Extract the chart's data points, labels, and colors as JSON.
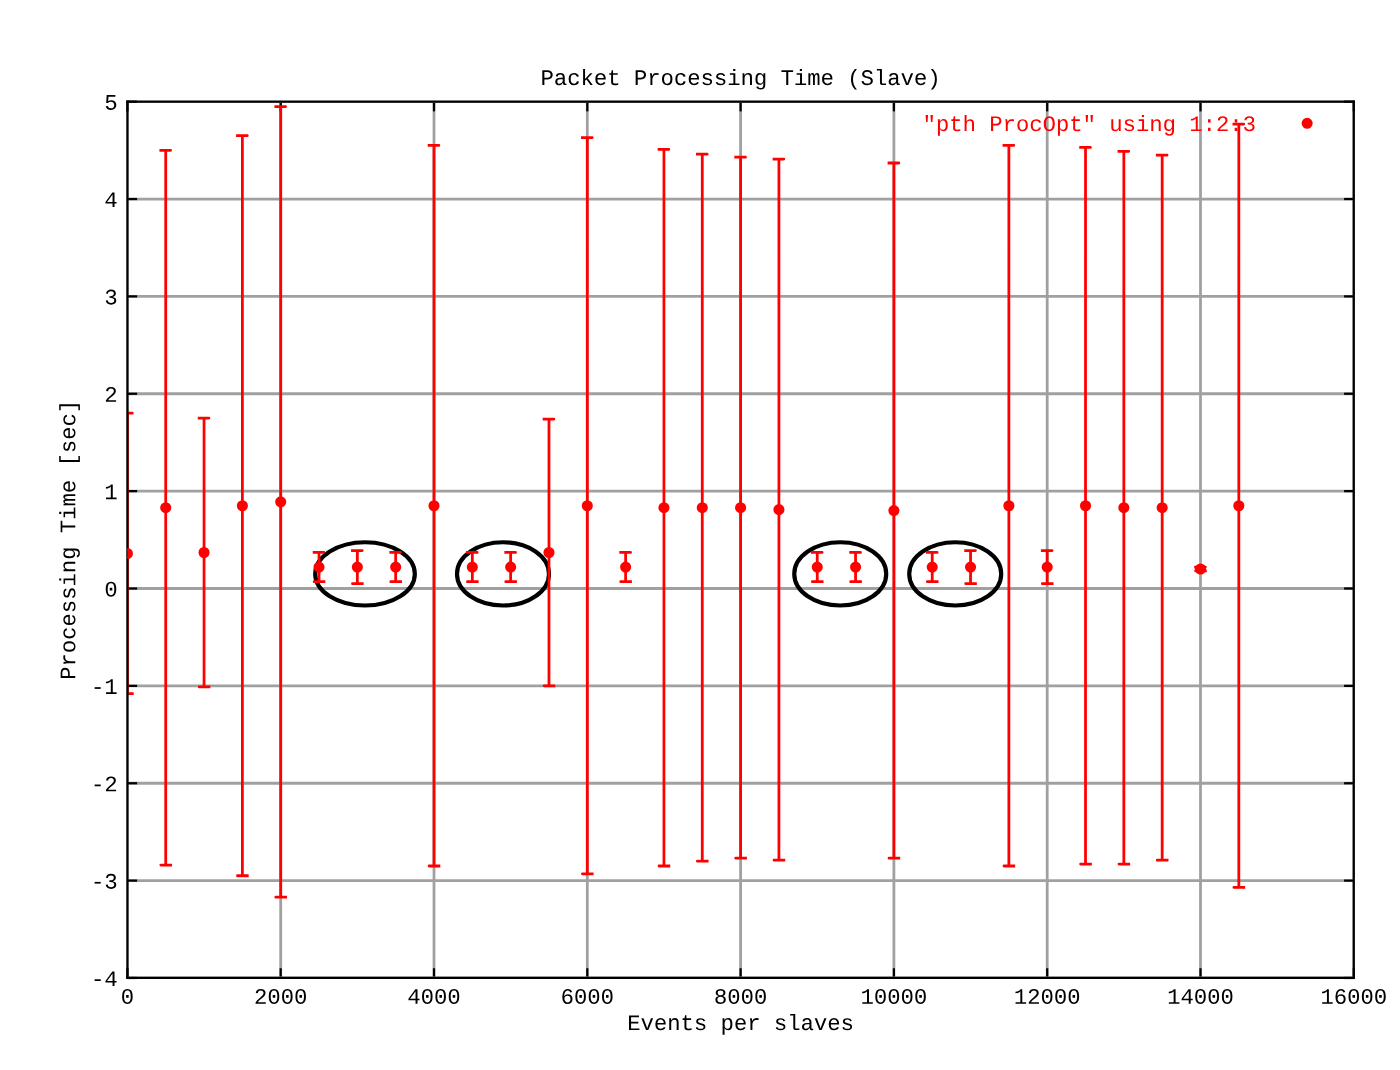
{
  "chart_data": {
    "type": "scatter",
    "title": "Packet Processing Time (Slave)",
    "xlabel": "Events per slaves",
    "ylabel": "Processing Time [sec]",
    "x": [
      0,
      500,
      1000,
      1500,
      2000,
      2500,
      3000,
      3500,
      4000,
      4500,
      5000,
      5500,
      6000,
      6500,
      7000,
      7500,
      8000,
      8500,
      9000,
      9500,
      10000,
      10500,
      11000,
      11500,
      12000,
      12500,
      13000,
      13500,
      14000,
      14500
    ],
    "series": [
      {
        "name": "\"pth ProcOpt\" using 1:2:3",
        "color": "#ff0000",
        "values": [
          0.36,
          0.83,
          0.37,
          0.85,
          0.89,
          0.22,
          0.22,
          0.22,
          0.85,
          0.22,
          0.22,
          0.37,
          0.85,
          0.22,
          0.83,
          0.83,
          0.83,
          0.81,
          0.22,
          0.22,
          0.8,
          0.22,
          0.22,
          0.85,
          0.22,
          0.85,
          0.83,
          0.83,
          0.2,
          0.85
        ],
        "errors": [
          1.44,
          3.67,
          1.38,
          3.8,
          4.06,
          0.15,
          0.17,
          0.15,
          3.7,
          0.15,
          0.15,
          1.37,
          3.78,
          0.15,
          3.68,
          3.63,
          3.6,
          3.6,
          0.15,
          0.15,
          3.57,
          0.15,
          0.17,
          3.7,
          0.17,
          3.68,
          3.66,
          3.62,
          0.02,
          3.92
        ]
      }
    ],
    "xlim": [
      0,
      16000
    ],
    "xticks": [
      0,
      2000,
      4000,
      6000,
      8000,
      10000,
      12000,
      14000,
      16000
    ],
    "ylim": [
      -4,
      5
    ],
    "yticks": [
      -4,
      -3,
      -2,
      -1,
      0,
      1,
      2,
      3,
      4,
      5
    ],
    "grid": true,
    "legend": "top right",
    "marker": "circle"
  }
}
